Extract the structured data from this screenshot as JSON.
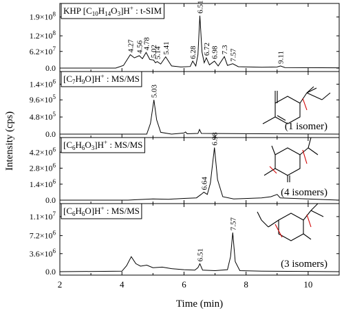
{
  "chart_data": {
    "type": "line",
    "xlabel": "Time (min)",
    "ylabel": "Intensity (cps)",
    "xlim": [
      2,
      11
    ],
    "x_ticks": [
      "2",
      "4",
      "6",
      "8",
      "10"
    ],
    "panels": [
      {
        "title": "KHP [C10H14O3]H+ : t-SIM",
        "ylim": [
          0,
          220000000.0
        ],
        "y_tick_values": [
          0,
          62000000.0,
          120000000.0,
          190000000.0
        ],
        "y_tick_labels": [
          "0.0",
          "6.2x10^7",
          "1.2x10^8",
          "1.9x10^8"
        ],
        "peak_labels": [
          {
            "x": 4.27,
            "label": "4.27",
            "value": 50000000.0
          },
          {
            "x": 4.56,
            "label": "4.56",
            "value": 46000000.0
          },
          {
            "x": 4.78,
            "label": "4.78",
            "value": 58000000.0
          },
          {
            "x": 5.02,
            "label": "5.02",
            "value": 30000000.0
          },
          {
            "x": 5.14,
            "label": "5.14",
            "value": 24000000.0
          },
          {
            "x": 5.41,
            "label": "5.41",
            "value": 42000000.0
          },
          {
            "x": 6.28,
            "label": "6.28",
            "value": 26000000.0
          },
          {
            "x": 6.51,
            "label": "6.51",
            "value": 195000000.0
          },
          {
            "x": 6.72,
            "label": "6.72",
            "value": 38000000.0
          },
          {
            "x": 6.98,
            "label": "6.98",
            "value": 26000000.0
          },
          {
            "x": 7.3,
            "label": "7.3",
            "value": 43000000.0
          },
          {
            "x": 7.57,
            "label": "7.57",
            "value": 16000000.0
          },
          {
            "x": 9.11,
            "label": "9.11",
            "value": 8000000.0
          }
        ],
        "series": [
          {
            "points": [
              [
                2,
                0
              ],
              [
                3.8,
                0
              ],
              [
                4.05,
                10000000.0
              ],
              [
                4.27,
                50000000.0
              ],
              [
                4.4,
                38000000.0
              ],
              [
                4.56,
                46000000.0
              ],
              [
                4.66,
                35000000.0
              ],
              [
                4.78,
                58000000.0
              ],
              [
                4.9,
                32000000.0
              ],
              [
                5.02,
                30000000.0
              ],
              [
                5.08,
                20000000.0
              ],
              [
                5.14,
                24000000.0
              ],
              [
                5.25,
                15000000.0
              ],
              [
                5.41,
                42000000.0
              ],
              [
                5.6,
                8000000.0
              ],
              [
                5.9,
                4000000.0
              ],
              [
                6.2,
                6000000.0
              ],
              [
                6.28,
                26000000.0
              ],
              [
                6.38,
                8000000.0
              ],
              [
                6.45,
                50000000.0
              ],
              [
                6.51,
                195000000.0
              ],
              [
                6.58,
                60000000.0
              ],
              [
                6.65,
                20000000.0
              ],
              [
                6.72,
                38000000.0
              ],
              [
                6.82,
                12000000.0
              ],
              [
                6.98,
                26000000.0
              ],
              [
                7.1,
                8000000.0
              ],
              [
                7.3,
                43000000.0
              ],
              [
                7.4,
                10000000.0
              ],
              [
                7.57,
                16000000.0
              ],
              [
                7.75,
                5000000.0
              ],
              [
                8.5,
                3000000.0
              ],
              [
                9.0,
                4000000.0
              ],
              [
                9.11,
                8000000.0
              ],
              [
                9.25,
                2000000.0
              ],
              [
                11,
                1000000.0
              ]
            ]
          }
        ]
      },
      {
        "title": "[C7H9O]H+ : MS/MS",
        "ylim": [
          0,
          1600000.0
        ],
        "y_tick_values": [
          0,
          480000.0,
          960000.0,
          1400000.0
        ],
        "y_tick_labels": [
          "0.0",
          "4.8x10^5",
          "9.6x10^5",
          "1.4x10^6"
        ],
        "peak_labels": [
          {
            "x": 5.03,
            "label": "5.03",
            "value": 960000.0
          }
        ],
        "isomers": "(1 isomer)",
        "series": [
          {
            "points": [
              [
                2,
                0
              ],
              [
                4.8,
                0
              ],
              [
                4.92,
                300000.0
              ],
              [
                5.03,
                960000.0
              ],
              [
                5.12,
                400000.0
              ],
              [
                5.25,
                50000.0
              ],
              [
                5.6,
                0
              ],
              [
                6.0,
                30000.0
              ],
              [
                6.05,
                60000.0
              ],
              [
                6.1,
                10000.0
              ],
              [
                6.45,
                20000.0
              ],
              [
                6.5,
                130000.0
              ],
              [
                6.56,
                20000.0
              ],
              [
                11,
                0
              ]
            ]
          }
        ]
      },
      {
        "title": "[C6H6O3]H+ : MS/MS",
        "ylim": [
          0,
          5000000.0
        ],
        "y_tick_values": [
          0,
          1400000.0,
          2800000.0,
          4200000.0
        ],
        "y_tick_labels": [
          "0.0",
          "1.4x10^6",
          "2.8x10^6",
          "4.2x10^6"
        ],
        "peak_labels": [
          {
            "x": 6.64,
            "label": "6.64",
            "value": 700000.0
          },
          {
            "x": 6.98,
            "label": "6.98",
            "value": 4600000.0
          }
        ],
        "isomers": "(4 isomers)",
        "series": [
          {
            "points": [
              [
                2,
                0
              ],
              [
                4.2,
                0
              ],
              [
                4.5,
                50000.0
              ],
              [
                5.0,
                100000.0
              ],
              [
                5.5,
                80000.0
              ],
              [
                6.0,
                150000.0
              ],
              [
                6.4,
                200000.0
              ],
              [
                6.55,
                500000.0
              ],
              [
                6.64,
                700000.0
              ],
              [
                6.75,
                500000.0
              ],
              [
                6.85,
                1500000.0
              ],
              [
                6.98,
                4600000.0
              ],
              [
                7.08,
                1800000.0
              ],
              [
                7.25,
                300000.0
              ],
              [
                7.6,
                100000.0
              ],
              [
                8.5,
                200000.0
              ],
              [
                8.8,
                300000.0
              ],
              [
                9.0,
                500000.0
              ],
              [
                9.1,
                200000.0
              ],
              [
                11,
                0
              ]
            ]
          }
        ]
      },
      {
        "title": "[C6H6O]H+ : MS/MS",
        "ylim": [
          0,
          12500000.0
        ],
        "y_tick_values": [
          0,
          3600000.0,
          7200000.0,
          11000000.0
        ],
        "y_tick_labels": [
          "0.0",
          "3.6x10^6",
          "7.2x10^6",
          "1.1x10^7"
        ],
        "peak_labels": [
          {
            "x": 6.51,
            "label": "6.51",
            "value": 1600000.0
          },
          {
            "x": 7.57,
            "label": "7.57",
            "value": 7800000.0
          }
        ],
        "isomers": "(3 isomers)",
        "series": [
          {
            "points": [
              [
                2,
                0
              ],
              [
                4.0,
                100000.0
              ],
              [
                4.15,
                1200000.0
              ],
              [
                4.3,
                3000000.0
              ],
              [
                4.45,
                1600000.0
              ],
              [
                4.6,
                1100000.0
              ],
              [
                4.8,
                1300000.0
              ],
              [
                5.0,
                800000.0
              ],
              [
                5.3,
                900000.0
              ],
              [
                5.6,
                600000.0
              ],
              [
                6.0,
                400000.0
              ],
              [
                6.35,
                300000.0
              ],
              [
                6.45,
                800000.0
              ],
              [
                6.51,
                1600000.0
              ],
              [
                6.6,
                300000.0
              ],
              [
                7.0,
                200000.0
              ],
              [
                7.4,
                400000.0
              ],
              [
                7.5,
                3000000.0
              ],
              [
                7.57,
                7800000.0
              ],
              [
                7.65,
                2000000.0
              ],
              [
                7.8,
                200000.0
              ],
              [
                8.5,
                100000.0
              ],
              [
                11,
                0
              ]
            ]
          }
        ]
      }
    ]
  }
}
